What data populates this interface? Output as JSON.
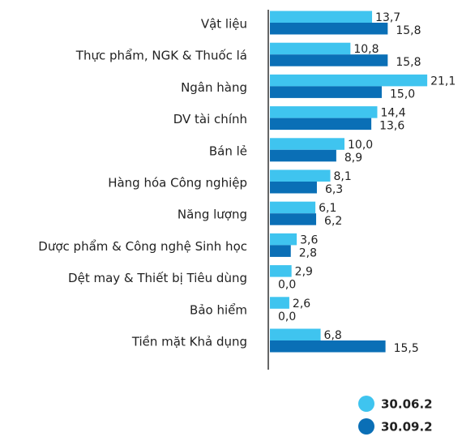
{
  "chart_data": {
    "type": "hbar",
    "categories": [
      "Vật liệu",
      "Thực phẩm, NGK & Thuốc lá",
      "Ngân hàng",
      "DV tài chính",
      "Bán lẻ",
      "Hàng hóa Công nghiệp",
      "Năng lượng",
      "Dược phẩm & Công nghệ Sinh học",
      "Dệt may & Thiết bị Tiêu dùng",
      "Bảo hiểm",
      "Tiền mặt Khả dụng"
    ],
    "series": [
      {
        "name": "30.06.2",
        "color": "#3fc4ef",
        "values": [
          13.7,
          10.8,
          21.1,
          14.4,
          10.0,
          8.1,
          6.1,
          3.6,
          2.9,
          2.6,
          6.8
        ],
        "value_labels": [
          "13,7",
          "10,8",
          "21,1",
          "14,4",
          "10,0",
          "8,1",
          "6,1",
          "3,6",
          "2,9",
          "2,6",
          "6,8"
        ]
      },
      {
        "name": "30.09.2",
        "color": "#0a6fb6",
        "values": [
          15.8,
          15.8,
          15.0,
          13.6,
          8.9,
          6.3,
          6.2,
          2.8,
          0.0,
          0.0,
          15.5
        ],
        "value_labels": [
          "15,8",
          "15,8",
          "15,0",
          "13,6",
          "8,9",
          "6,3",
          "6,2",
          "2,8",
          "0,0",
          "0,0",
          "15,5"
        ]
      }
    ],
    "xlim": [
      0,
      25
    ],
    "legend": "bottom-right"
  }
}
